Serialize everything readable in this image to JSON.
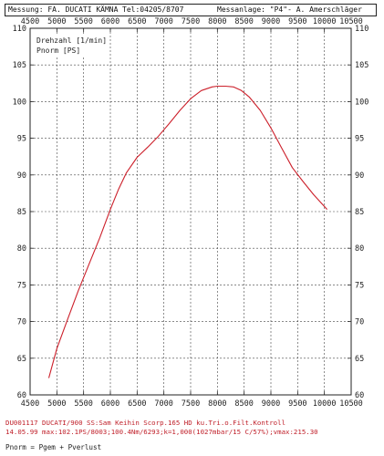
{
  "header": {
    "messung": "Messung: FA. DUCATI KÄMNA",
    "tel": "Tel:04205/8707",
    "messanlage": "Messanlage: \"P4\"- A. Amerschläger"
  },
  "footer": {
    "line1": "DU001117  DUCATI/900 SS:Sam Keihin Scorp.165 HD ku.Tri.o.Filt.Kontroll",
    "line2": "14.05.99  max:102.1PS/8003;100.4Nm/6293;k=1,000(1027mbar/15 C/57%);vmax:215.30",
    "formula": "Pnorm = Pgem + Pverlust"
  },
  "chart_data": {
    "type": "line",
    "xlim": [
      4500,
      10500
    ],
    "ylim": [
      60,
      110
    ],
    "x_ticks": [
      4500,
      5000,
      5500,
      6000,
      6500,
      7000,
      7500,
      8000,
      8500,
      9000,
      9500,
      10000,
      10500
    ],
    "y_ticks": [
      60,
      65,
      70,
      75,
      80,
      85,
      90,
      95,
      100,
      105,
      110
    ],
    "y_tick_labels": [
      "60",
      "",
      "70",
      "",
      "80",
      "",
      "90",
      "",
      "100",
      "",
      "110"
    ],
    "x_tick_labels_bottom": [
      "4500",
      "5000",
      "5500",
      "6000",
      "6500",
      "7000",
      "7500",
      "8000",
      "8500",
      "9000",
      "9500",
      "10000",
      "10500"
    ],
    "x_tick_labels_top": [
      "4500",
      "5000",
      "5500",
      "6000",
      "6500",
      "7000",
      "7500",
      "8000",
      "8500",
      "9000",
      "9500",
      "10000",
      "10500"
    ],
    "y_tick_labels_left": [
      "60",
      "65",
      "70",
      "75",
      "80",
      "85",
      "90",
      "95",
      "100",
      "105",
      "110"
    ],
    "y_tick_labels_right": [
      "60",
      "65",
      "70",
      "75",
      "80",
      "85",
      "90",
      "95",
      "100",
      "105",
      "110"
    ],
    "legend": [
      "Drehzahl [1/min]",
      "Pnorm [PS]"
    ],
    "grid": true,
    "series": [
      {
        "name": "Pnorm [PS]",
        "color": "#cc1f2a",
        "x": [
          4850,
          5000,
          5200,
          5400,
          5600,
          5800,
          6000,
          6150,
          6300,
          6500,
          6700,
          6900,
          7100,
          7300,
          7500,
          7700,
          7900,
          8000,
          8150,
          8300,
          8450,
          8600,
          8800,
          9000,
          9200,
          9400,
          9600,
          9800,
          10050
        ],
        "y": [
          62.3,
          66.3,
          70.3,
          74.2,
          77.8,
          81.4,
          85.3,
          88.0,
          90.3,
          92.4,
          93.8,
          95.3,
          97.0,
          98.8,
          100.4,
          101.5,
          102.0,
          102.1,
          102.1,
          102.0,
          101.5,
          100.6,
          98.8,
          96.4,
          93.7,
          91.0,
          89.1,
          87.3,
          85.3
        ]
      }
    ]
  }
}
